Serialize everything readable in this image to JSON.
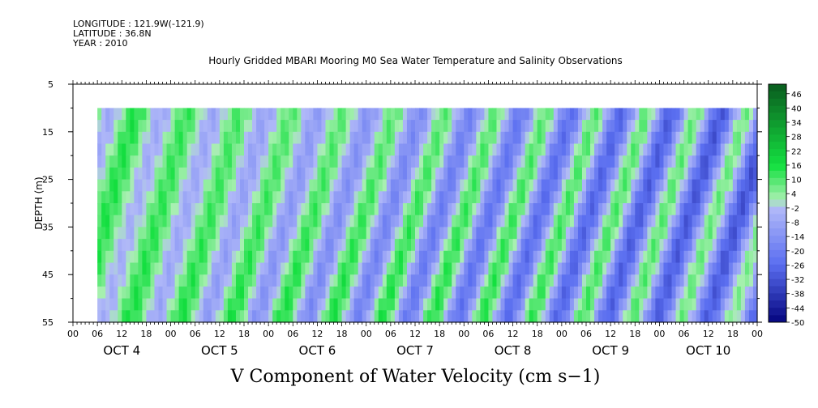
{
  "header": {
    "longitude": "LONGITUDE : 121.9W(-121.9)",
    "latitude": "LATITUDE : 36.8N",
    "year": "YEAR : 2010"
  },
  "chart_data": {
    "type": "heatmap",
    "title": "Hourly Gridded MBARI Mooring M0 Sea Water Temperature and Salinity Observations",
    "variable_label": "V Component of Water Velocity (cm s−1)",
    "ylabel": "DEPTH (m)",
    "y_ticks": [
      5,
      15,
      25,
      35,
      45,
      55
    ],
    "ylim": [
      5,
      55
    ],
    "y_inverted": true,
    "x_hour_labels": [
      "00",
      "06",
      "12",
      "18",
      "00",
      "06",
      "12",
      "18",
      "00",
      "06",
      "12",
      "18",
      "00",
      "06",
      "12",
      "18",
      "00",
      "06",
      "12",
      "18",
      "00",
      "06",
      "12",
      "18",
      "00",
      "06",
      "12",
      "18",
      "00"
    ],
    "x_day_labels": [
      "OCT 4",
      "OCT 5",
      "OCT 6",
      "OCT 7",
      "OCT 8",
      "OCT 9",
      "OCT 10"
    ],
    "x_range_hours": [
      0,
      168
    ],
    "data_start_hour": 6,
    "data_depth_range": [
      10,
      55
    ],
    "colorbar": {
      "labels": [
        "46",
        "40",
        "34",
        "28",
        "22",
        "16",
        "10",
        "4",
        "-2",
        "-8",
        "-14",
        "-20",
        "-26",
        "-32",
        "-38",
        "-44",
        "-50"
      ],
      "range": [
        -50,
        50
      ],
      "step": 3,
      "colors": {
        "deep_green": "#0a5c1e",
        "bright_green": "#14e040",
        "light_green": "#a8f0b0",
        "light_blue": "#b0b8f8",
        "mid_blue": "#5a6ef0",
        "deep_blue": "#00007a"
      }
    }
  }
}
